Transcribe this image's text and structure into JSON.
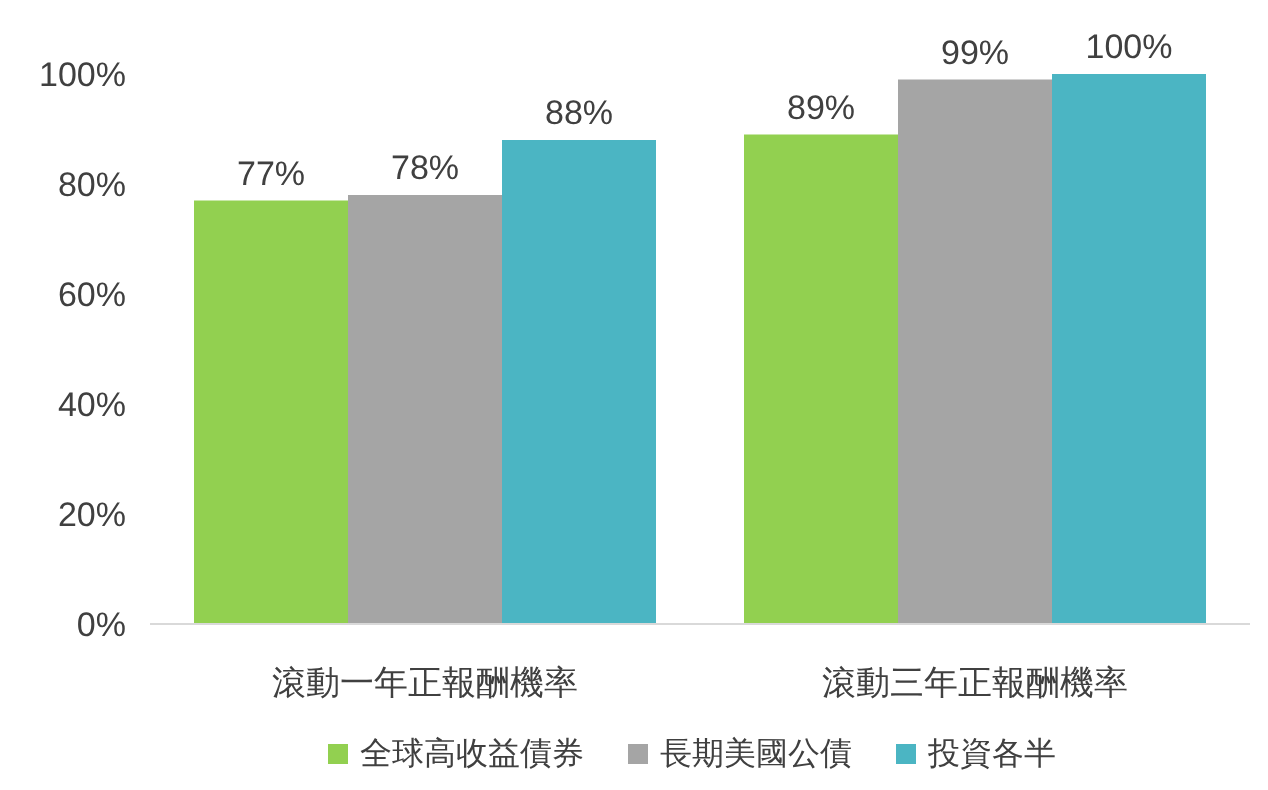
{
  "chart_data": {
    "type": "bar",
    "categories": [
      "滾動一年正報酬機率",
      "滾動三年正報酬機率"
    ],
    "series": [
      {
        "name": "全球高收益債券",
        "color": "#92d050",
        "values": [
          77,
          89
        ],
        "value_labels": [
          "77%",
          "89%"
        ]
      },
      {
        "name": "長期美國公債",
        "color": "#a5a5a5",
        "values": [
          78,
          99
        ],
        "value_labels": [
          "78%",
          "99%"
        ]
      },
      {
        "name": "投資各半",
        "color": "#4bb5c3",
        "values": [
          88,
          100
        ],
        "value_labels": [
          "88%",
          "100%"
        ]
      }
    ],
    "ylim": [
      0,
      100
    ],
    "yticks": [
      {
        "value": 0,
        "label": "0%"
      },
      {
        "value": 20,
        "label": "20%"
      },
      {
        "value": 40,
        "label": "40%"
      },
      {
        "value": 60,
        "label": "60%"
      },
      {
        "value": 80,
        "label": "80%"
      },
      {
        "value": 100,
        "label": "100%"
      }
    ],
    "grid": false,
    "legend": "bottom"
  }
}
